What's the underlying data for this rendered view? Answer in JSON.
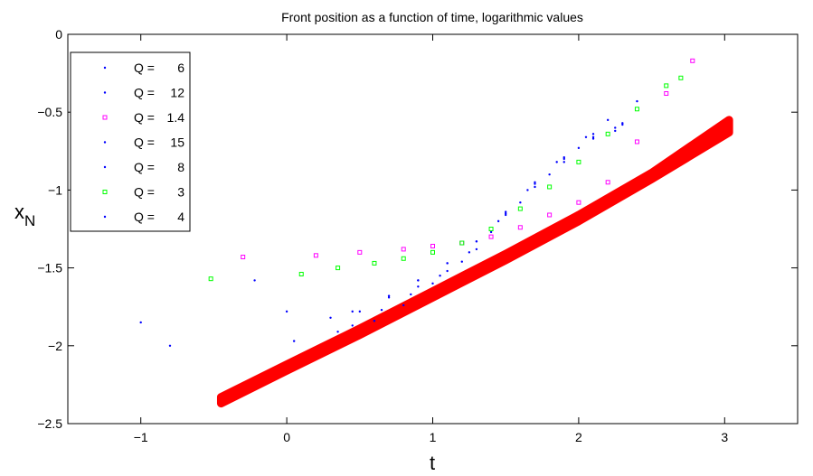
{
  "chart_data": {
    "type": "scatter",
    "title": "Front position as a function of time, logarithmic values",
    "xlabel": "t",
    "ylabel": "x",
    "ylabel_sub": "N",
    "xlim": [
      -1.5,
      3.5
    ],
    "ylim": [
      -2.5,
      0
    ],
    "xticks": [
      -1,
      0,
      1,
      2,
      3
    ],
    "yticks": [
      0,
      -0.5,
      -1,
      -1.5,
      -2,
      -2.5
    ],
    "xtick_labels": [
      "−1",
      "0",
      "1",
      "2",
      "3"
    ],
    "ytick_labels": [
      "0",
      "−0.5",
      "−1",
      "−1.5",
      "−2",
      "−2.5"
    ],
    "grid": false,
    "legend_position": "top-left",
    "colors": {
      "blue": "#0000ff",
      "magenta": "#ff00ff",
      "green": "#00ff00",
      "red": "#ff0000"
    },
    "series": [
      {
        "name": "Q =   6",
        "label_left": "Q =",
        "label_right": "6",
        "marker": "dot",
        "color": "#0000ff",
        "x": [
          -1.0,
          0.6,
          0.9,
          1.1,
          1.3,
          1.5,
          1.7,
          1.9,
          2.1,
          2.25
        ],
        "y": [
          -1.85,
          -1.84,
          -1.58,
          -1.47,
          -1.33,
          -1.15,
          -0.98,
          -0.82,
          -0.67,
          -0.62
        ]
      },
      {
        "name": "Q =  12",
        "label_left": "Q =",
        "label_right": "12",
        "marker": "dot",
        "color": "#0000ff",
        "x": [
          0.0,
          0.3,
          0.5,
          0.7,
          0.9,
          1.1,
          1.3,
          1.5,
          1.7,
          1.9,
          2.1,
          2.3
        ],
        "y": [
          -1.78,
          -1.82,
          -1.78,
          -1.69,
          -1.62,
          -1.52,
          -1.38,
          -1.16,
          -0.96,
          -0.8,
          -0.66,
          -0.58
        ]
      },
      {
        "name": "Q = 1.4",
        "label_left": "Q =",
        "label_right": "1.4",
        "marker": "square",
        "color": "#ff00ff",
        "x": [
          -0.3,
          0.2,
          0.5,
          0.8,
          1.0,
          1.2,
          1.4,
          1.6,
          1.8,
          2.0,
          2.2,
          2.4,
          2.6,
          2.78
        ],
        "y": [
          -1.43,
          -1.42,
          -1.4,
          -1.38,
          -1.36,
          -1.34,
          -1.3,
          -1.24,
          -1.16,
          -1.08,
          -0.95,
          -0.69,
          -0.38,
          -0.17
        ]
      },
      {
        "name": "Q =  15",
        "label_left": "Q =",
        "label_right": "15",
        "marker": "dot",
        "color": "#0000ff",
        "x": [
          0.05,
          0.45,
          0.65,
          0.85,
          1.05,
          1.25,
          1.45,
          1.65,
          1.85,
          2.05,
          2.25
        ],
        "y": [
          -1.97,
          -1.87,
          -1.77,
          -1.67,
          -1.55,
          -1.4,
          -1.2,
          -1.0,
          -0.82,
          -0.66,
          -0.6
        ]
      },
      {
        "name": "Q =   8",
        "label_left": "Q =",
        "label_right": "8",
        "marker": "dot",
        "color": "#0000ff",
        "x": [
          -0.8,
          0.35,
          0.6,
          0.8,
          1.0,
          1.2,
          1.4,
          1.6,
          1.8,
          2.0,
          2.2,
          2.4
        ],
        "y": [
          -2.0,
          -1.91,
          -1.84,
          -1.74,
          -1.6,
          -1.46,
          -1.27,
          -1.08,
          -0.9,
          -0.73,
          -0.55,
          -0.43
        ]
      },
      {
        "name": "Q =   3",
        "label_left": "Q =",
        "label_right": "3",
        "marker": "square",
        "color": "#00ff00",
        "x": [
          -0.52,
          0.1,
          0.35,
          0.6,
          0.8,
          1.0,
          1.2,
          1.4,
          1.6,
          1.8,
          2.0,
          2.2,
          2.4,
          2.6,
          2.7
        ],
        "y": [
          -1.57,
          -1.54,
          -1.5,
          -1.47,
          -1.44,
          -1.4,
          -1.34,
          -1.25,
          -1.12,
          -0.98,
          -0.82,
          -0.64,
          -0.48,
          -0.33,
          -0.28
        ]
      },
      {
        "name": "Q =   4",
        "label_left": "Q =",
        "label_right": "4",
        "marker": "dot",
        "color": "#0000ff",
        "x": [
          -0.22,
          0.45,
          0.7,
          0.9,
          1.1,
          1.3,
          1.5,
          1.7,
          1.9,
          2.1,
          2.3
        ],
        "y": [
          -1.58,
          -1.78,
          -1.68,
          -1.58,
          -1.47,
          -1.33,
          -1.14,
          -0.95,
          -0.79,
          -0.64,
          -0.57
        ]
      }
    ],
    "band": {
      "color": "#ff0000",
      "x": [
        -0.45,
        0.0,
        0.5,
        1.0,
        1.5,
        2.0,
        2.5,
        3.03
      ],
      "y": [
        -2.37,
        -2.16,
        -1.93,
        -1.69,
        -1.45,
        -1.2,
        -0.93,
        -0.63
      ],
      "y_upper": [
        -2.33,
        -2.12,
        -1.89,
        -1.65,
        -1.41,
        -1.16,
        -0.89,
        -0.55
      ]
    }
  }
}
